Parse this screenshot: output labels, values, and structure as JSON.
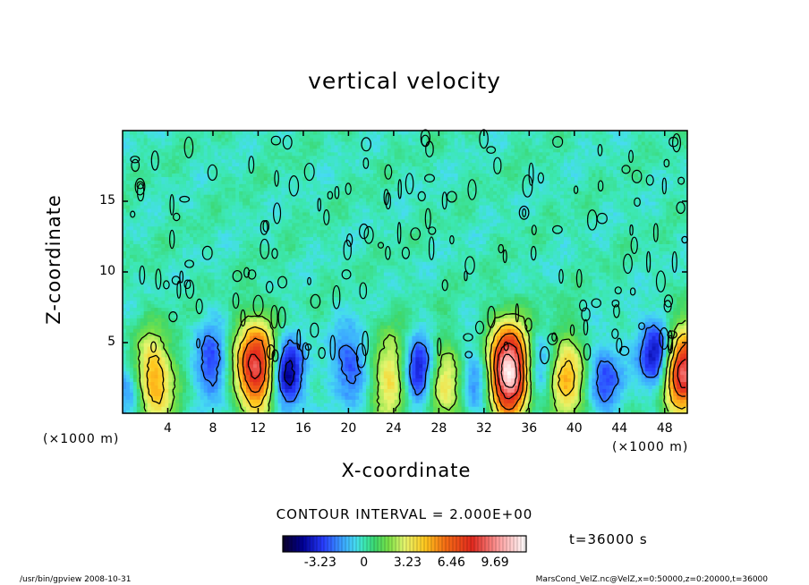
{
  "chart_data": {
    "type": "heatmap",
    "title": "vertical velocity",
    "xlabel": "X-coordinate",
    "ylabel": "Z-coordinate",
    "x_unit": "(×1000 m)",
    "z_unit": "(×1000 m)",
    "xlim": [
      0,
      50
    ],
    "ylim": [
      0,
      20
    ],
    "xticks": [
      "4",
      "8",
      "12",
      "16",
      "20",
      "24",
      "28",
      "32",
      "36",
      "40",
      "44",
      "48"
    ],
    "yticks": [
      "5",
      "10",
      "15"
    ],
    "contour_interval": "CONTOUR INTERVAL = 2.000E+00",
    "time_label": "t=36000 s",
    "colorbar_labels": [
      "-3.23",
      "0",
      "3.23",
      "6.46",
      "9.69"
    ],
    "colorbar_range": [
      -6,
      12
    ],
    "features": [
      {
        "kind": "updraft",
        "x": 11.8,
        "z": 3.3,
        "peak": 9.0
      },
      {
        "kind": "updraft",
        "x": 34.2,
        "z": 3.0,
        "peak": 12.0
      },
      {
        "kind": "updraft",
        "x": 49.6,
        "z": 3.0,
        "peak": 9.0
      },
      {
        "kind": "updraft",
        "x": 2.6,
        "z": 2.3,
        "peak": 6.0
      },
      {
        "kind": "updraft",
        "x": 23.8,
        "z": 2.5,
        "peak": 4.0
      },
      {
        "kind": "updraft",
        "x": 39.3,
        "z": 2.4,
        "peak": 5.0
      },
      {
        "kind": "updraft",
        "x": 28.5,
        "z": 2.0,
        "peak": 4.0
      },
      {
        "kind": "downdraft",
        "x": 14.5,
        "z": 2.8,
        "peak": -5.0
      },
      {
        "kind": "downdraft",
        "x": 26.3,
        "z": 2.8,
        "peak": -5.0
      },
      {
        "kind": "downdraft",
        "x": 47.3,
        "z": 4.2,
        "peak": -5.0
      },
      {
        "kind": "downdraft",
        "x": 37.0,
        "z": 2.9,
        "peak": -3.0
      },
      {
        "kind": "downdraft",
        "x": 8.0,
        "z": 3.5,
        "peak": -3.0
      },
      {
        "kind": "downdraft",
        "x": 20.2,
        "z": 3.5,
        "peak": -3.0
      },
      {
        "kind": "downdraft",
        "x": 31.3,
        "z": 2.5,
        "peak": -3.0
      },
      {
        "kind": "downdraft",
        "x": 42.5,
        "z": 2.5,
        "peak": -3.0
      },
      {
        "kind": "downdraft",
        "x": 1.0,
        "z": 1.5,
        "peak": -3.0
      }
    ]
  },
  "footer": {
    "program": "/usr/bin/gpview  2008-10-31",
    "source": "MarsCond_VelZ.nc@VelZ,x=0:50000,z=0:20000,t=36000"
  },
  "colors": {
    "background_mid": "#3fe6b4",
    "contour": "#000000"
  }
}
